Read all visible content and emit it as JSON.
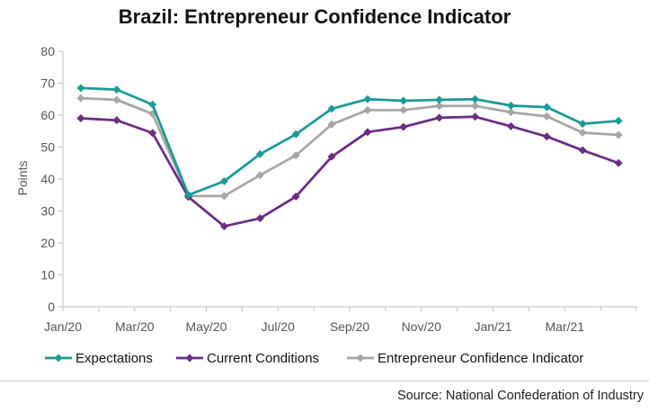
{
  "chart_data": {
    "type": "line",
    "title": "Brazil: Entrepreneur Confidence Indicator",
    "ylabel": "Points",
    "xlabel": "",
    "ylim": [
      0,
      80
    ],
    "yticks": [
      0,
      10,
      20,
      30,
      40,
      50,
      60,
      70,
      80
    ],
    "categories": [
      "Jan/20",
      "Feb/20",
      "Mar/20",
      "Apr/20",
      "May/20",
      "Jun/20",
      "Jul/20",
      "Aug/20",
      "Sep/20",
      "Oct/20",
      "Nov/20",
      "Dec/20",
      "Jan/21",
      "Feb/21",
      "Mar/21",
      "Apr/21"
    ],
    "tick_labels": [
      "Jan/20",
      "Mar/20",
      "May/20",
      "Jul/20",
      "Sep/20",
      "Nov/20",
      "Jan/21",
      "Mar/21"
    ],
    "grid": false,
    "legend_position": "bottom",
    "series": [
      {
        "name": "Expectations",
        "color": "#1a9a96",
        "marker": "diamond",
        "values": [
          68.5,
          68.0,
          63.3,
          35.0,
          39.3,
          47.8,
          54.0,
          62.0,
          65.0,
          64.5,
          64.8,
          65.0,
          63.0,
          62.5,
          57.3,
          58.2
        ]
      },
      {
        "name": "Current Conditions",
        "color": "#6b2c83",
        "marker": "diamond",
        "values": [
          59.0,
          58.4,
          54.4,
          34.4,
          25.2,
          27.7,
          34.5,
          47.0,
          54.7,
          56.3,
          59.2,
          59.5,
          56.5,
          53.3,
          49.0,
          45.0
        ]
      },
      {
        "name": "Entrepreneur Confidence Indicator",
        "color": "#a6a6a6",
        "marker": "diamond",
        "values": [
          65.3,
          64.8,
          60.4,
          34.7,
          34.7,
          41.2,
          47.4,
          57.1,
          61.6,
          61.6,
          62.9,
          62.9,
          60.9,
          59.6,
          54.5,
          53.8
        ]
      }
    ]
  },
  "source": "Source: National Confederation of Industry"
}
